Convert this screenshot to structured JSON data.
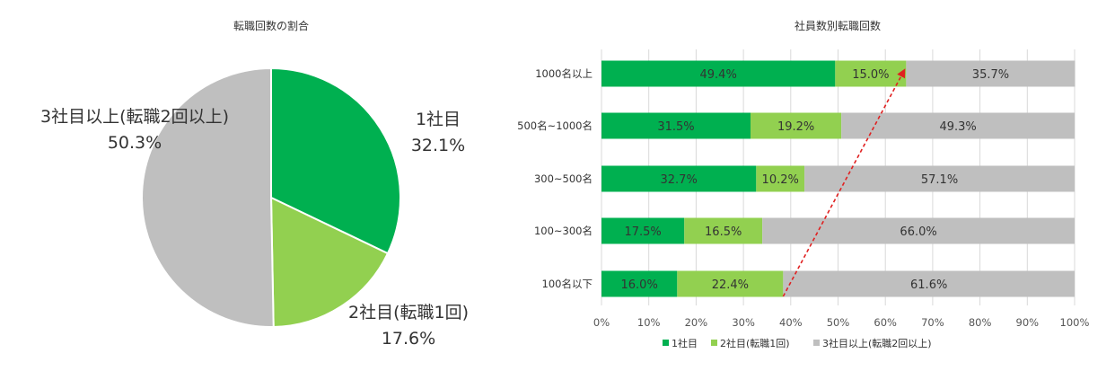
{
  "colors": {
    "series1": "#00B050",
    "series2": "#92D050",
    "series3": "#BFBFBF",
    "arrow": "#E02020",
    "grid": "#D9D9D9"
  },
  "chart_data": [
    {
      "type": "pie",
      "title": "転職回数の割合",
      "slices": [
        {
          "label": "1社目",
          "value": 32.1,
          "display": "32.1%",
          "color": "#00B050"
        },
        {
          "label": "2社目(転職1回)",
          "value": 17.6,
          "display": "17.6%",
          "color": "#92D050"
        },
        {
          "label": "3社目以上(転職2回以上)",
          "value": 50.3,
          "display": "50.3%",
          "color": "#BFBFBF"
        }
      ]
    },
    {
      "type": "bar",
      "orientation": "horizontal",
      "stacked": true,
      "title": "社員数別転職回数",
      "categories": [
        "1000名以上",
        "500名~1000名",
        "300~500名",
        "100~300名",
        "100名以下"
      ],
      "series": [
        {
          "name": "1社目",
          "color": "#00B050",
          "values": [
            49.4,
            31.5,
            32.7,
            17.5,
            16.0
          ],
          "labels": [
            "49.4%",
            "31.5%",
            "32.7%",
            "17.5%",
            "16.0%"
          ]
        },
        {
          "name": "2社目(転職1回)",
          "color": "#92D050",
          "values": [
            15.0,
            19.2,
            10.2,
            16.5,
            22.4
          ],
          "labels": [
            "15.0%",
            "19.2%",
            "10.2%",
            "16.5%",
            "22.4%"
          ]
        },
        {
          "name": "3社目以上(転職2回以上)",
          "color": "#BFBFBF",
          "values": [
            35.7,
            49.3,
            57.1,
            66.0,
            61.6
          ],
          "labels": [
            "35.7%",
            "49.3%",
            "57.1%",
            "66.0%",
            "61.6%"
          ]
        }
      ],
      "xlim": [
        0,
        100
      ],
      "xticks": [
        "0%",
        "10%",
        "20%",
        "30%",
        "40%",
        "50%",
        "60%",
        "70%",
        "80%",
        "90%",
        "100%"
      ],
      "grid": true,
      "legend": "bottom",
      "annotation": {
        "type": "dashed-arrow",
        "from": {
          "category": "100名以下",
          "x": 38.4
        },
        "to": {
          "category": "1000名以上",
          "x": 64.4
        }
      }
    }
  ]
}
